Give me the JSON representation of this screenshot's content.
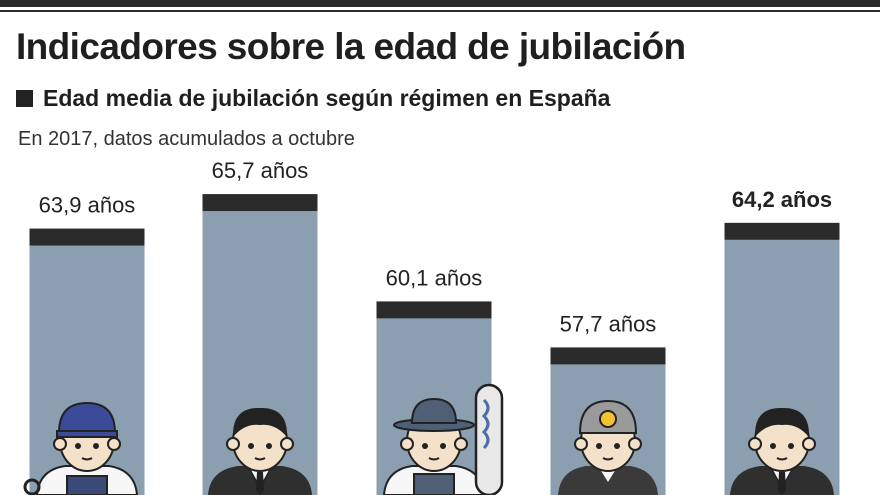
{
  "header": {
    "title": "Indicadores sobre la edad de jubilación",
    "subtitle": "Edad media de jubilación según régimen en España",
    "note": "En 2017, datos acumulados a octubre"
  },
  "colors": {
    "bar": "#8c9fb0",
    "bar_cap": "#2b2b2b",
    "text": "#222222"
  },
  "chart_data": {
    "type": "bar",
    "title": "Edad media de jubilación según régimen en España",
    "subtitle": "En 2017, datos acumulados a octubre",
    "unit": "años",
    "ylim": [
      50,
      68
    ],
    "categories": [
      "",
      "",
      "",
      "",
      ""
    ],
    "values": [
      63.9,
      65.7,
      60.1,
      57.7,
      64.2
    ],
    "labels": [
      "63,9 años",
      "65,7 años",
      "60,1 años",
      "57,7 años",
      "64,2 años"
    ],
    "highlight_index": 4,
    "icons": [
      "worker-icon",
      "businessman-icon",
      "farmer-icon",
      "miner-icon",
      "businessman-icon"
    ]
  }
}
